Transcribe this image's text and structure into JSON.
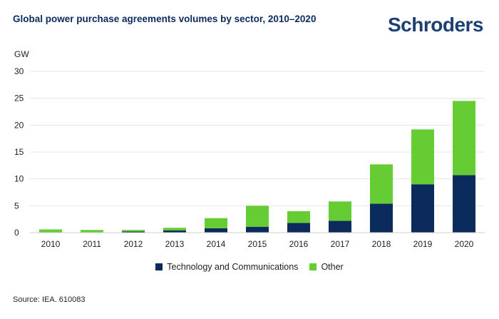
{
  "header": {
    "title": "Global power purchase agreements volumes by sector, 2010–2020",
    "logo_text": "Schroders"
  },
  "footer": {
    "source": "Source: IEA. 610083"
  },
  "colors": {
    "tech": "#0b2b5c",
    "other": "#66cc33",
    "logo": "#1d3f73",
    "grid": "#e4e4e4"
  },
  "chart_data": {
    "type": "bar",
    "stacked": true,
    "title": "Global power purchase agreements volumes by sector, 2010–2020",
    "ylabel": "GW",
    "xlabel": "",
    "ylim": [
      0,
      30
    ],
    "yticks": [
      0,
      5,
      10,
      15,
      20,
      25,
      30
    ],
    "grid": true,
    "legend_position": "bottom-center",
    "categories": [
      "2010",
      "2011",
      "2012",
      "2013",
      "2014",
      "2015",
      "2016",
      "2017",
      "2018",
      "2019",
      "2020"
    ],
    "series": [
      {
        "name": "Technology and Communications",
        "color": "#0b2b5c",
        "values": [
          0.0,
          0.0,
          0.2,
          0.4,
          0.8,
          1.1,
          1.8,
          2.2,
          5.4,
          9.0,
          10.7
        ]
      },
      {
        "name": "Other",
        "color": "#66cc33",
        "values": [
          0.6,
          0.5,
          0.3,
          0.5,
          1.9,
          3.9,
          2.2,
          3.6,
          7.3,
          10.2,
          13.8
        ]
      }
    ]
  }
}
